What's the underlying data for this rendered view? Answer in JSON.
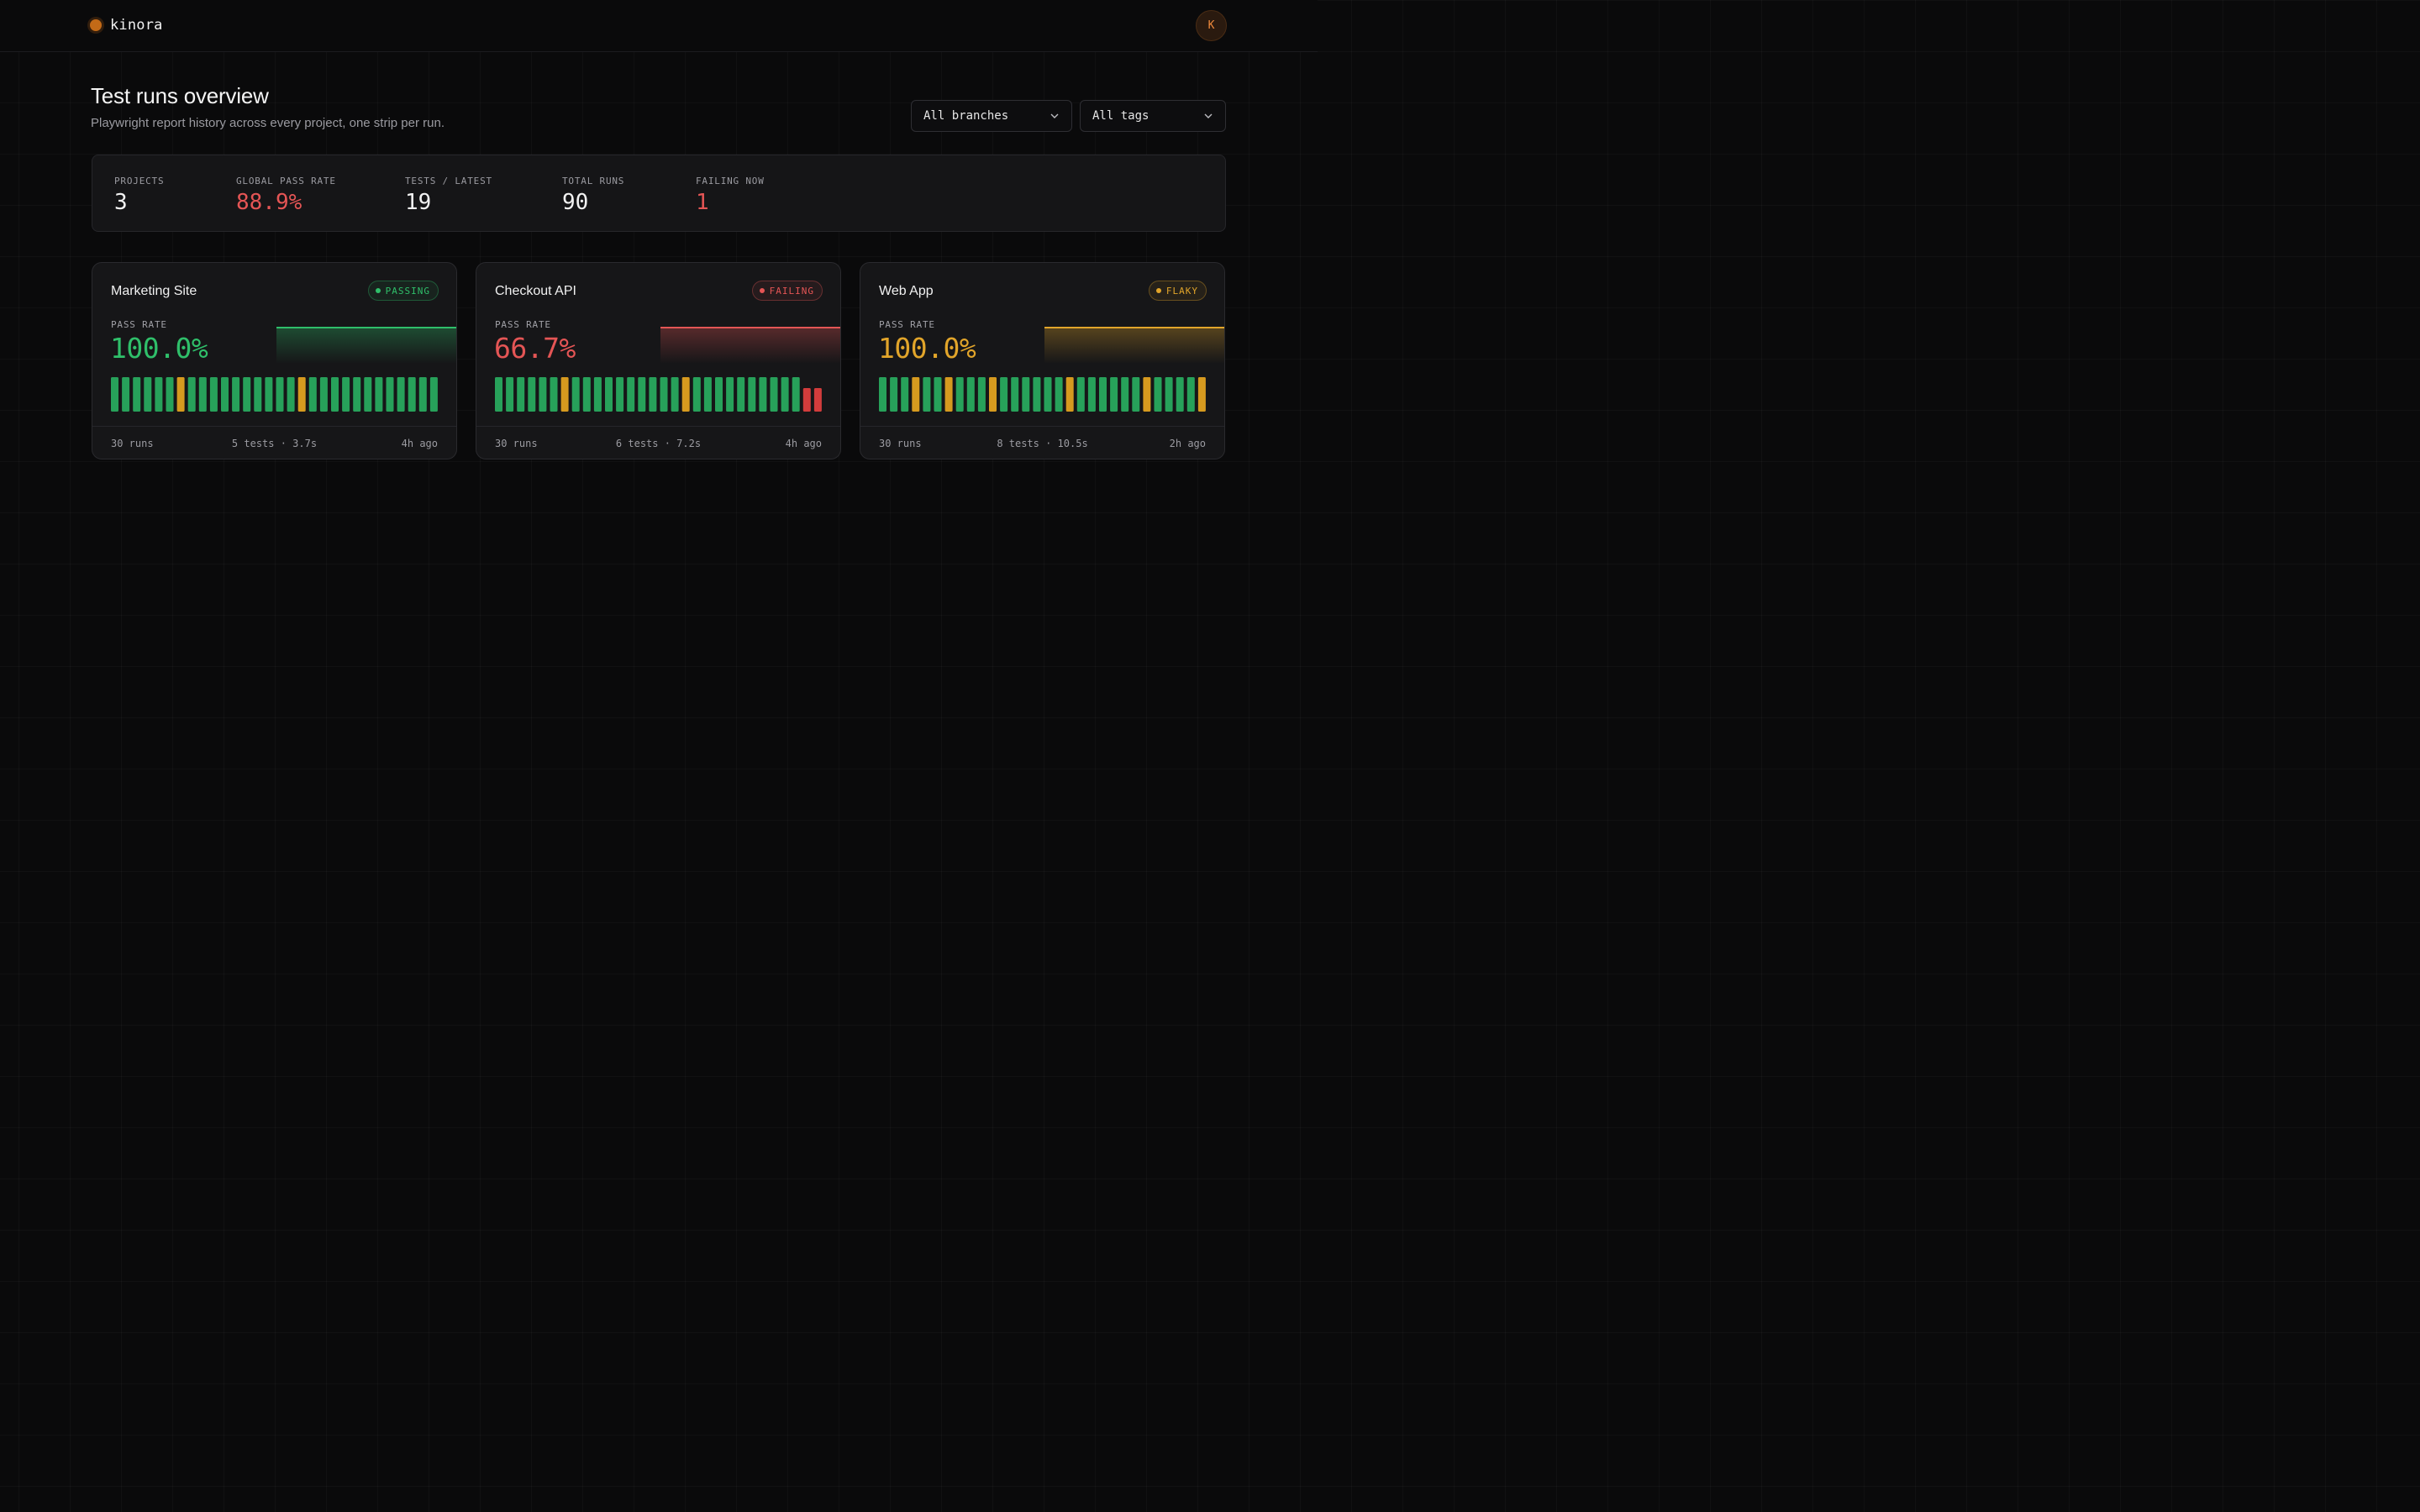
{
  "header": {
    "app_name": "kinora",
    "avatar_initial": "K"
  },
  "page": {
    "title": "Test runs overview",
    "subtitle": "Playwright report history across every project, one strip per run."
  },
  "filters": {
    "branch": "All branches",
    "tags": "All tags"
  },
  "stats": [
    {
      "label": "PROJECTS",
      "value": "3"
    },
    {
      "label": "GLOBAL PASS RATE",
      "value": "88.9%"
    },
    {
      "label": "TESTS / LATEST",
      "value": "19"
    },
    {
      "label": "TOTAL RUNS",
      "value": "90"
    },
    {
      "label": "FAILING NOW",
      "value": "1"
    }
  ],
  "colors": {
    "pass": "#27a15a",
    "flaky": "#d69a1f",
    "fail": "#d23c3c",
    "accent": "#c36a17"
  },
  "projects": [
    {
      "name": "Marketing Site",
      "status": "PASSING",
      "pass_rate_label": "PASS RATE",
      "pass_rate": "100.0%",
      "accent": "#2fbf6a",
      "runs_label": "30 runs",
      "tests_label": "5 tests · 3.7s",
      "ago": "4h ago",
      "runs": [
        "p",
        "p",
        "p",
        "p",
        "p",
        "p",
        "f",
        "p",
        "p",
        "p",
        "p",
        "p",
        "p",
        "p",
        "p",
        "p",
        "p",
        "f",
        "p",
        "p",
        "p",
        "p",
        "p",
        "p",
        "p",
        "p",
        "p",
        "p",
        "p",
        "p"
      ]
    },
    {
      "name": "Checkout API",
      "status": "FAILING",
      "pass_rate_label": "PASS RATE",
      "pass_rate": "66.7%",
      "accent": "#e45555",
      "runs_label": "30 runs",
      "tests_label": "6 tests · 7.2s",
      "ago": "4h ago",
      "runs": [
        "p",
        "p",
        "p",
        "p",
        "p",
        "p",
        "f",
        "p",
        "p",
        "p",
        "p",
        "p",
        "p",
        "p",
        "p",
        "p",
        "p",
        "f",
        "p",
        "p",
        "p",
        "p",
        "p",
        "p",
        "p",
        "p",
        "p",
        "p",
        "x",
        "x"
      ]
    },
    {
      "name": "Web App",
      "status": "FLAKY",
      "pass_rate_label": "PASS RATE",
      "pass_rate": "100.0%",
      "accent": "#e2a52a",
      "runs_label": "30 runs",
      "tests_label": "8 tests · 10.5s",
      "ago": "2h ago",
      "runs": [
        "p",
        "p",
        "p",
        "f",
        "p",
        "p",
        "f",
        "p",
        "p",
        "p",
        "f",
        "p",
        "p",
        "p",
        "p",
        "p",
        "p",
        "f",
        "p",
        "p",
        "p",
        "p",
        "p",
        "p",
        "f",
        "p",
        "p",
        "p",
        "p",
        "f"
      ]
    }
  ]
}
